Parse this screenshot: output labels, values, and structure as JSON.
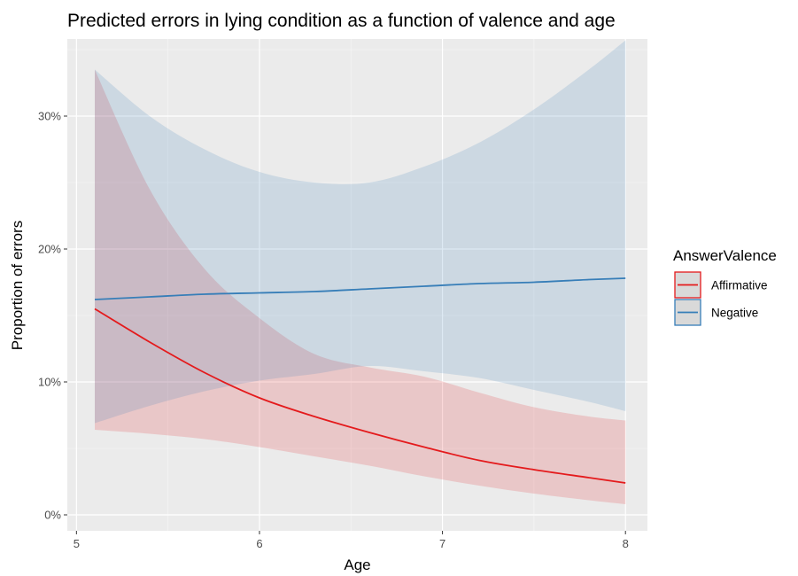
{
  "chart_data": {
    "type": "line",
    "title": "Predicted errors in lying condition as a function of valence and age",
    "xlabel": "Age",
    "ylabel": "Proportion of errors",
    "xlim": [
      4.95,
      8.12
    ],
    "ylim": [
      -0.012,
      0.358
    ],
    "x_ticks": [
      5,
      6,
      7,
      8
    ],
    "x_tick_labels": [
      "5",
      "6",
      "7",
      "8"
    ],
    "y_ticks": [
      0,
      0.1,
      0.2,
      0.3
    ],
    "y_tick_labels": [
      "0%",
      "10%",
      "20%",
      "30%"
    ],
    "grid": true,
    "legend": {
      "title": "AnswerValence",
      "position": "right"
    },
    "x": [
      5.1,
      5.4,
      5.7,
      6.0,
      6.3,
      6.6,
      6.9,
      7.2,
      7.5,
      7.8,
      8.0
    ],
    "series": [
      {
        "name": "Affirmative",
        "color": "#e41a1c",
        "values": [
          0.155,
          0.13,
          0.107,
          0.088,
          0.074,
          0.062,
          0.051,
          0.041,
          0.034,
          0.028,
          0.024
        ],
        "lower": [
          0.064,
          0.061,
          0.057,
          0.051,
          0.044,
          0.037,
          0.029,
          0.022,
          0.016,
          0.011,
          0.008
        ],
        "upper": [
          0.335,
          0.245,
          0.185,
          0.148,
          0.121,
          0.111,
          0.104,
          0.092,
          0.081,
          0.074,
          0.071
        ]
      },
      {
        "name": "Negative",
        "color": "#377eb8",
        "values": [
          0.162,
          0.164,
          0.166,
          0.167,
          0.168,
          0.17,
          0.172,
          0.174,
          0.175,
          0.177,
          0.178
        ],
        "lower": [
          0.069,
          0.082,
          0.093,
          0.101,
          0.106,
          0.112,
          0.108,
          0.103,
          0.094,
          0.085,
          0.078
        ],
        "upper": [
          0.335,
          0.3,
          0.275,
          0.258,
          0.25,
          0.25,
          0.262,
          0.28,
          0.305,
          0.335,
          0.357
        ]
      }
    ]
  }
}
